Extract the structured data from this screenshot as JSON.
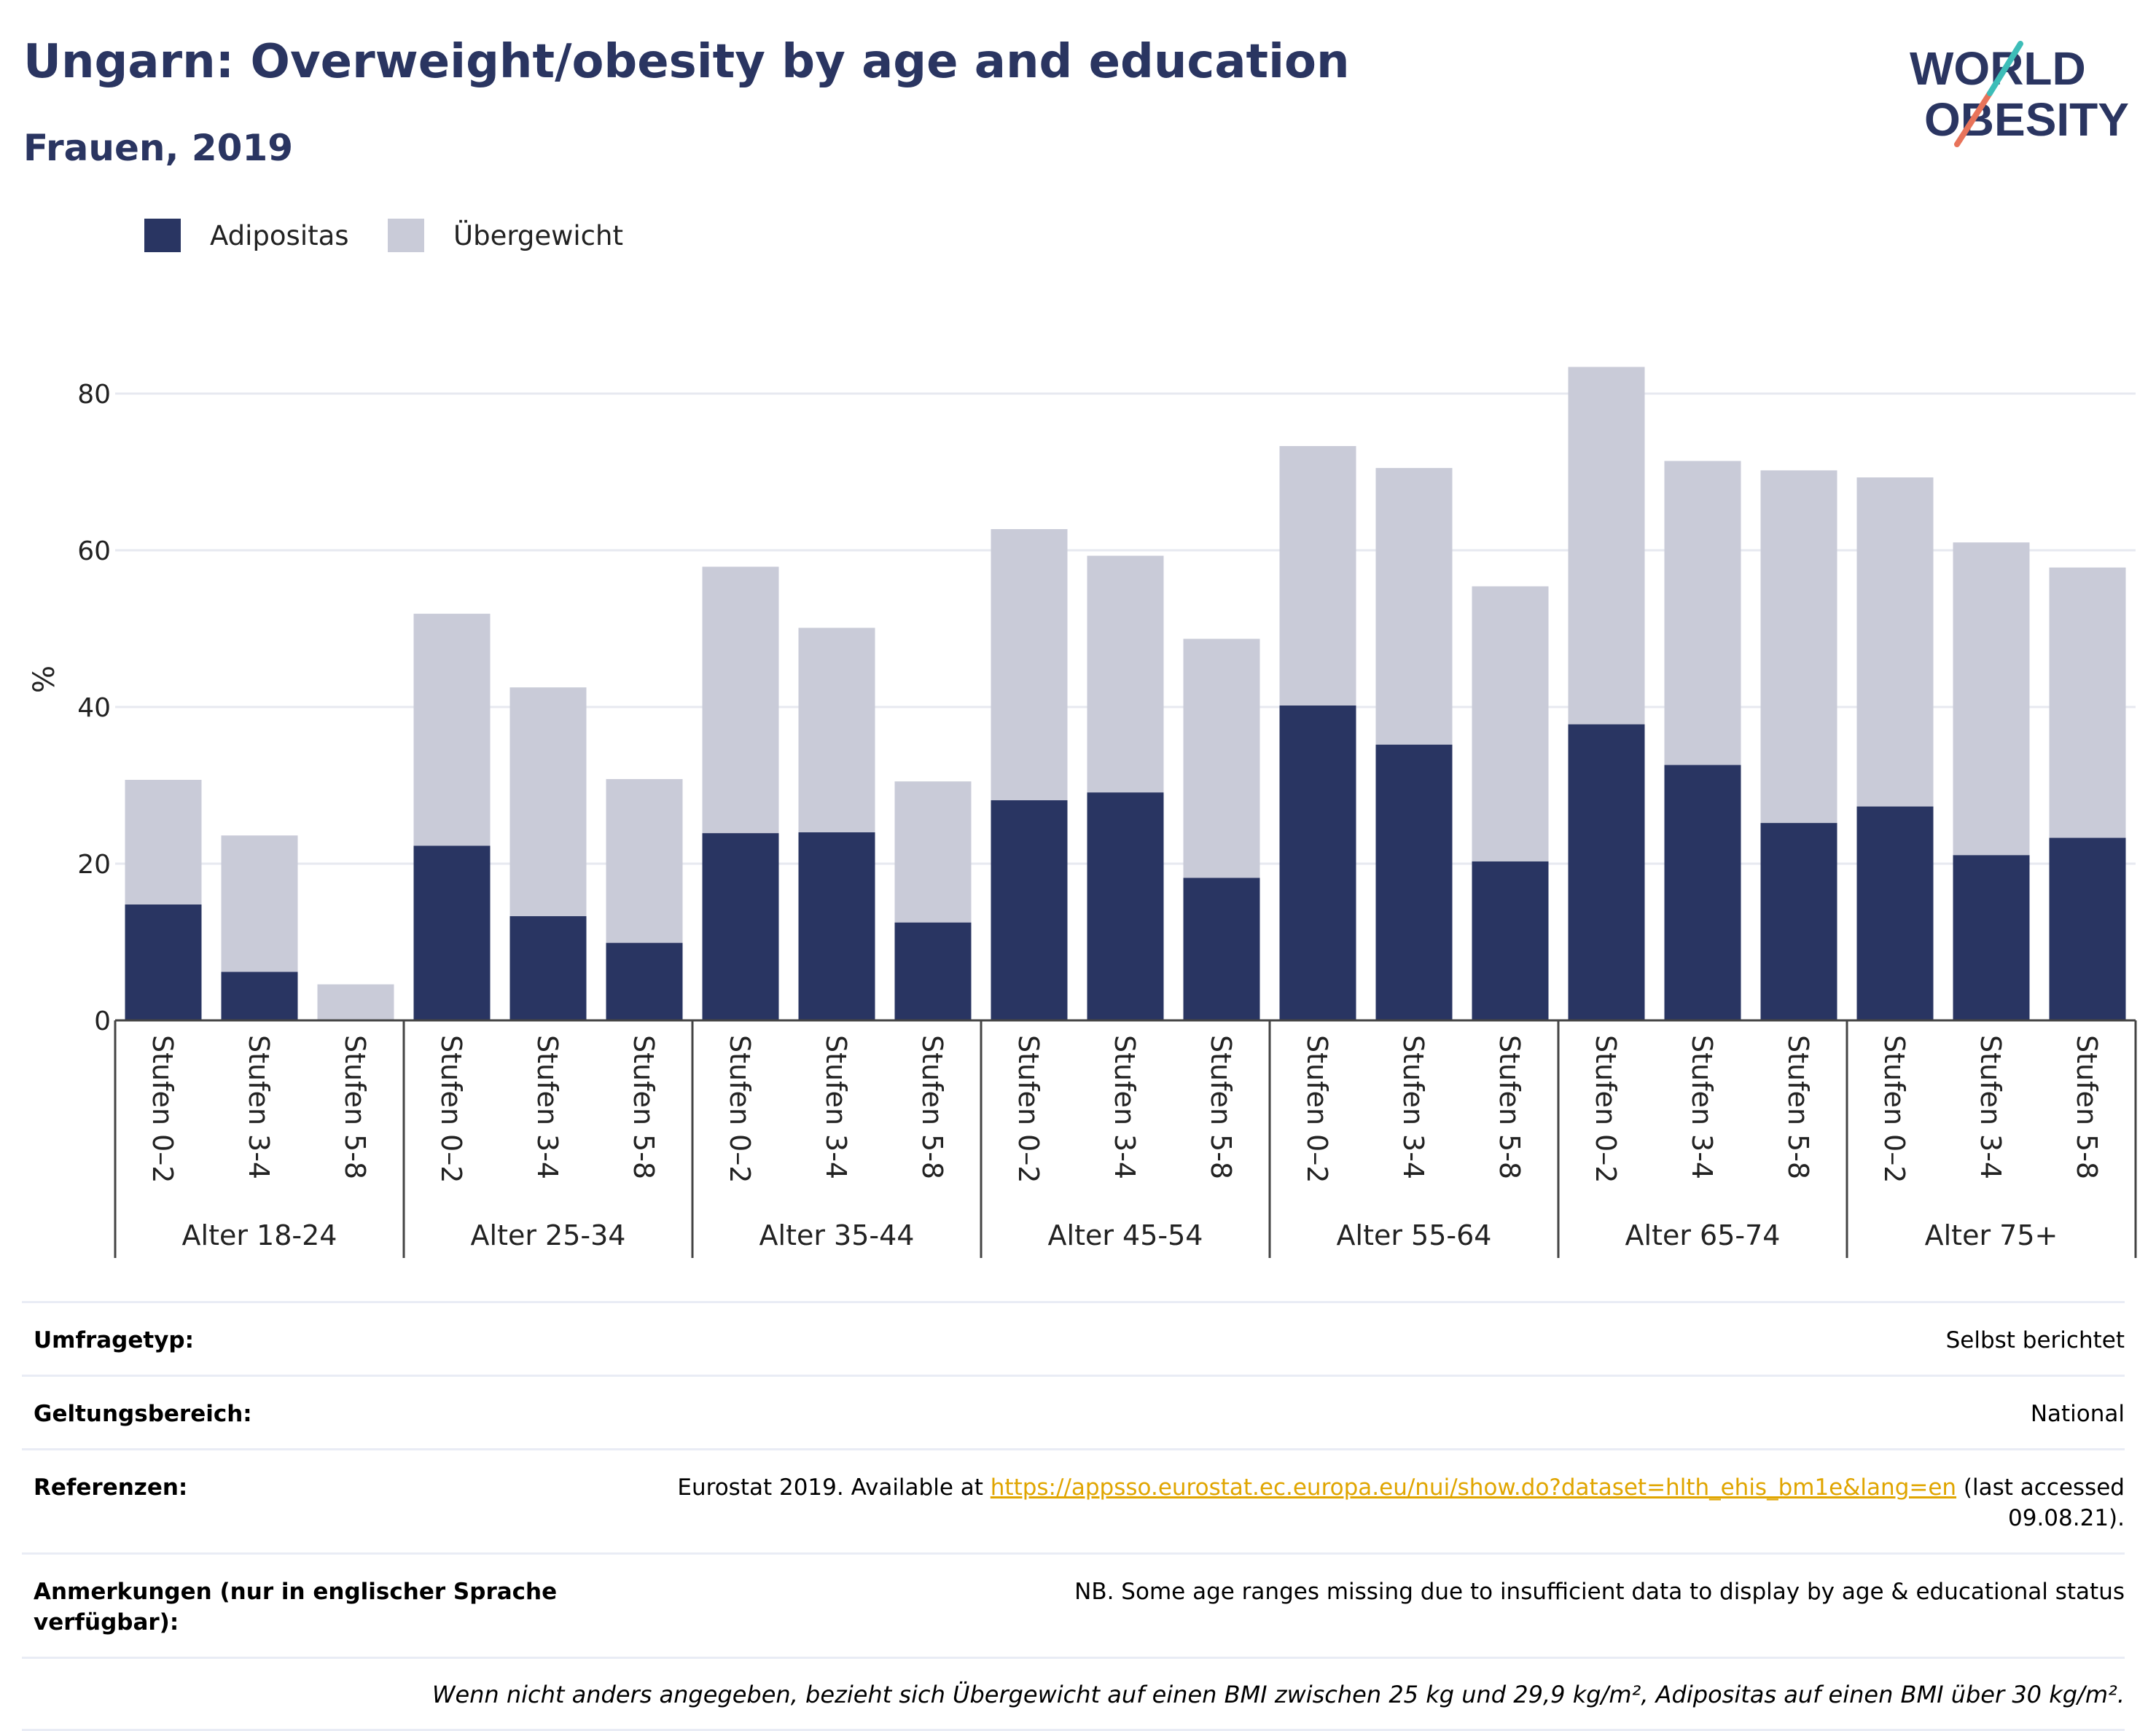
{
  "title": "Ungarn: Overweight/obesity by age and education",
  "subtitle": "Frauen, 2019",
  "logo": {
    "line1": "WORLD",
    "line2": "OBESITY"
  },
  "chart_data": {
    "type": "bar",
    "stacked": true,
    "ylabel": "%",
    "ylim": [
      0,
      90
    ],
    "yticks": [
      0,
      20,
      40,
      60,
      80
    ],
    "grid": true,
    "legend": {
      "position": "top-left",
      "items": [
        "Adipositas",
        "Übergewicht"
      ]
    },
    "groups": [
      "Alter 18-24",
      "Alter 25-34",
      "Alter 35-44",
      "Alter 45-54",
      "Alter 55-64",
      "Alter 65-74",
      "Alter 75+"
    ],
    "subcategories": [
      "Stufen 0–2",
      "Stufen 3-4",
      "Stufen 5-8"
    ],
    "colors": {
      "Adipositas": "#293562",
      "Übergewicht": "#c9cbd8"
    },
    "series": [
      {
        "name": "Adipositas",
        "values": [
          14.8,
          6.2,
          0,
          22.3,
          13.3,
          9.9,
          23.9,
          24.0,
          12.5,
          28.1,
          29.1,
          18.2,
          40.2,
          35.2,
          20.3,
          37.8,
          32.6,
          25.2,
          27.3,
          21.1,
          23.3
        ]
      },
      {
        "name": "Übergewicht",
        "values": [
          15.9,
          17.4,
          4.6,
          29.6,
          29.2,
          20.9,
          34.0,
          26.1,
          18.0,
          34.6,
          30.2,
          30.5,
          33.1,
          35.3,
          35.1,
          45.6,
          38.8,
          45.0,
          42.0,
          39.9,
          34.5
        ]
      }
    ]
  },
  "notes": {
    "survey_type_label": "Umfragetyp:",
    "survey_type_value": "Selbst berichtet",
    "coverage_label": "Geltungsbereich:",
    "coverage_value": "National",
    "references_label": "Referenzen:",
    "references_prefix": "Eurostat 2019. Available at ",
    "references_link": "https://appsso.eurostat.ec.europa.eu/nui/show.do?dataset=hlth_ehis_bm1e&lang=en",
    "references_suffix": " (last accessed 09.08.21).",
    "remarks_label": "Anmerkungen (nur in englischer Sprache verfügbar):",
    "remarks_value": "NB. Some age ranges missing due to insufficient data to display by age & educational status",
    "footnote": "Wenn nicht anders angegeben, bezieht sich Übergewicht auf einen BMI zwischen 25 kg und 29,9 kg/m², Adipositas auf einen BMI über 30 kg/m²."
  }
}
